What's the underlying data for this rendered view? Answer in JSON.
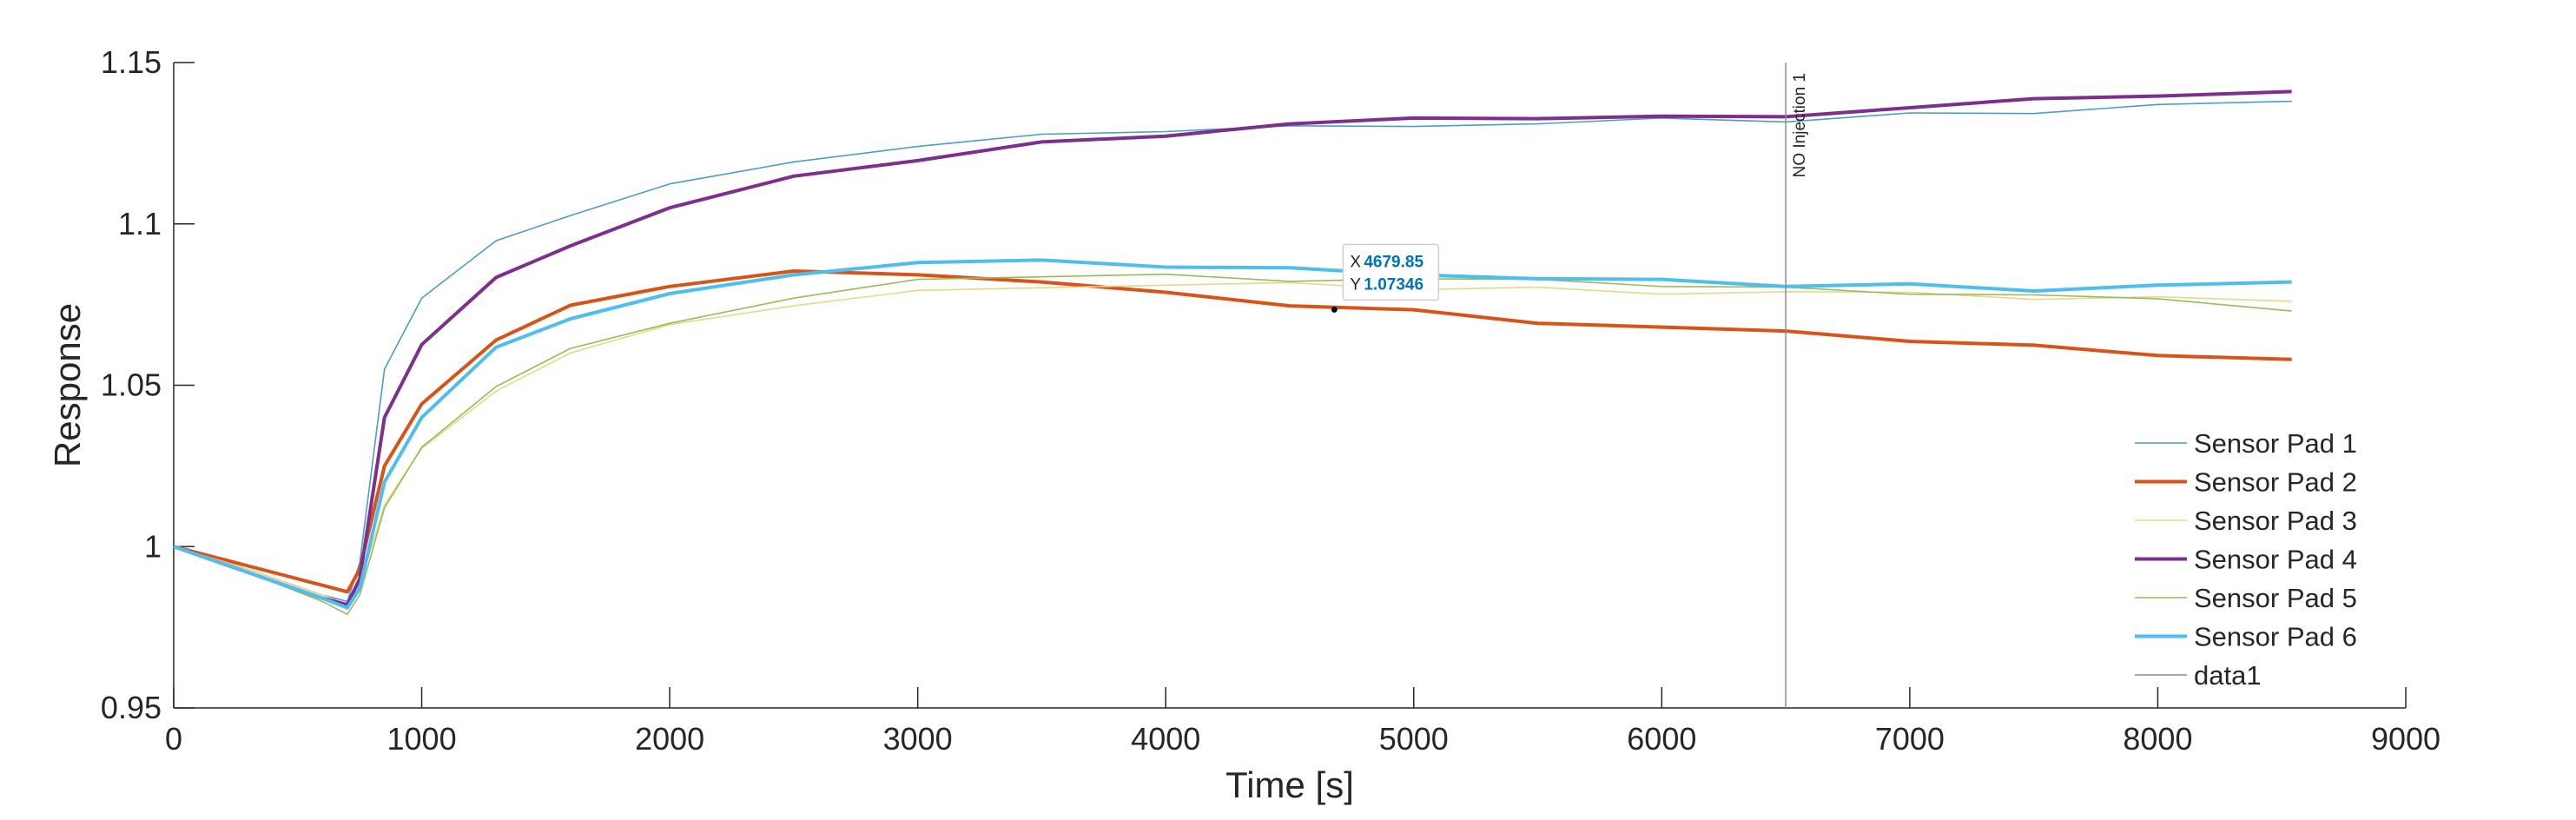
{
  "chart_data": {
    "type": "line",
    "title": "",
    "xlabel": "Time [s]",
    "ylabel": "Response",
    "xlim": [
      0,
      9000
    ],
    "ylim": [
      0.95,
      1.15
    ],
    "xticks": [
      0,
      1000,
      2000,
      3000,
      4000,
      5000,
      6000,
      7000,
      8000,
      9000
    ],
    "xtick_labels": [
      "0",
      "1000",
      "2000",
      "3000",
      "4000",
      "5000",
      "6000",
      "7000",
      "8000",
      "9000"
    ],
    "yticks": [
      0.95,
      1,
      1.05,
      1.1,
      1.15
    ],
    "ytick_labels": [
      "0.95",
      "1",
      "1.05",
      "1.1",
      "1.15"
    ],
    "grid": false,
    "legend_position": "bottom-right",
    "series": [
      {
        "name": "Sensor Pad 1",
        "color": "#4A9FC4",
        "x": [
          0,
          300,
          600,
          700,
          750,
          850,
          1000,
          1300,
          1600,
          2000,
          2500,
          3000,
          3500,
          4000,
          4500,
          5000,
          5500,
          6000,
          6500,
          7000,
          7500,
          8000,
          8540
        ],
        "y": [
          1.0,
          0.993,
          0.985,
          0.983,
          0.995,
          1.055,
          1.077,
          1.094,
          1.103,
          1.112,
          1.12,
          1.124,
          1.127,
          1.129,
          1.13,
          1.131,
          1.131,
          1.132,
          1.132,
          1.134,
          1.135,
          1.137,
          1.138
        ]
      },
      {
        "name": "Sensor Pad 2",
        "color": "#D95319",
        "x": [
          0,
          300,
          600,
          700,
          750,
          850,
          1000,
          1300,
          1600,
          2000,
          2500,
          3000,
          3500,
          4000,
          4500,
          5000,
          5500,
          6000,
          6500,
          7000,
          7500,
          8000,
          8540
        ],
        "y": [
          1.0,
          0.994,
          0.988,
          0.986,
          0.993,
          1.025,
          1.045,
          1.064,
          1.074,
          1.081,
          1.085,
          1.085,
          1.082,
          1.078,
          1.075,
          1.073,
          1.07,
          1.068,
          1.066,
          1.064,
          1.062,
          1.06,
          1.058
        ]
      },
      {
        "name": "Sensor Pad 3",
        "color": "#EDD68A",
        "x": [
          0,
          300,
          600,
          700,
          750,
          850,
          1000,
          1300,
          1600,
          2000,
          2500,
          3000,
          3500,
          4000,
          4500,
          5000,
          5500,
          6000,
          6500,
          7000,
          7500,
          8000,
          8540
        ],
        "y": [
          1.0,
          0.993,
          0.985,
          0.982,
          0.988,
          1.013,
          1.03,
          1.049,
          1.06,
          1.068,
          1.075,
          1.079,
          1.081,
          1.081,
          1.081,
          1.08,
          1.08,
          1.079,
          1.079,
          1.078,
          1.077,
          1.077,
          1.076
        ]
      },
      {
        "name": "Sensor Pad 4",
        "color": "#7E2F8E",
        "x": [
          0,
          300,
          600,
          700,
          750,
          850,
          1000,
          1300,
          1600,
          2000,
          2500,
          3000,
          3500,
          4000,
          4500,
          5000,
          5500,
          6000,
          6500,
          7000,
          7500,
          8000,
          8540
        ],
        "y": [
          1.0,
          0.992,
          0.984,
          0.982,
          0.99,
          1.04,
          1.063,
          1.083,
          1.094,
          1.105,
          1.114,
          1.12,
          1.125,
          1.128,
          1.131,
          1.132,
          1.133,
          1.133,
          1.134,
          1.136,
          1.138,
          1.14,
          1.141
        ]
      },
      {
        "name": "Sensor Pad 5",
        "color": "#9BBB59",
        "x": [
          0,
          300,
          600,
          700,
          750,
          850,
          1000,
          1300,
          1600,
          2000,
          2500,
          3000,
          3500,
          4000,
          4500,
          5000,
          5500,
          6000,
          6500,
          7000,
          7500,
          8000,
          8540
        ],
        "y": [
          1.0,
          0.992,
          0.983,
          0.979,
          0.985,
          1.012,
          1.03,
          1.05,
          1.061,
          1.07,
          1.077,
          1.082,
          1.084,
          1.084,
          1.083,
          1.083,
          1.082,
          1.081,
          1.08,
          1.079,
          1.078,
          1.076,
          1.073
        ]
      },
      {
        "name": "Sensor Pad 6",
        "color": "#4DBEEE",
        "x": [
          0,
          300,
          600,
          700,
          750,
          850,
          1000,
          1300,
          1600,
          2000,
          2500,
          3000,
          3500,
          4000,
          4500,
          5000,
          5500,
          6000,
          6500,
          7000,
          7500,
          8000,
          8540
        ],
        "y": [
          1.0,
          0.992,
          0.984,
          0.981,
          0.987,
          1.02,
          1.04,
          1.061,
          1.071,
          1.078,
          1.085,
          1.088,
          1.088,
          1.087,
          1.086,
          1.085,
          1.083,
          1.082,
          1.081,
          1.081,
          1.08,
          1.081,
          1.082
        ]
      },
      {
        "name": "data1",
        "color": "#8C8C8C",
        "type": "vertical_line",
        "x": [
          6500,
          6500
        ],
        "y": [
          0.95,
          1.15
        ]
      }
    ],
    "annotations": [
      {
        "text": "NO Injection 1",
        "x": 6500,
        "y": 1.15,
        "orientation": "vertical"
      }
    ],
    "datatip": {
      "x_key": "X",
      "y_key": "Y",
      "x_value": "4679.85",
      "y_value": "1.07346",
      "x": 4679.85,
      "y": 1.07346
    }
  }
}
